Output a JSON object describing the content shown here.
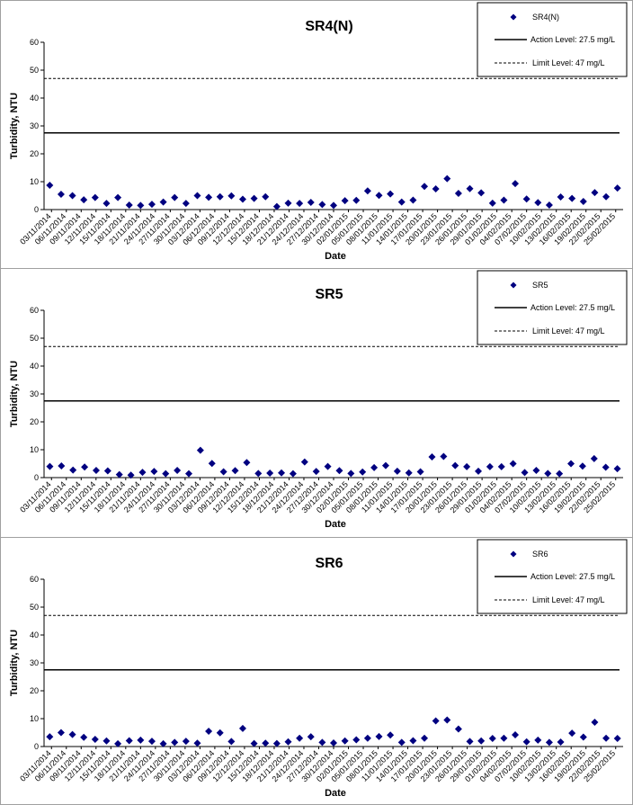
{
  "chart_data": [
    {
      "type": "scatter",
      "title": "SR4(N)",
      "xlabel": "Date",
      "ylabel": "Turbidity, NTU",
      "ylim": [
        0,
        60
      ],
      "yticks": [
        "0",
        "10",
        "20",
        "30",
        "40",
        "50",
        "60"
      ],
      "x_tick_labels": [
        "03/11/2014",
        "06/11/2014",
        "09/11/2014",
        "12/11/2014",
        "15/11/2014",
        "18/11/2014",
        "21/11/2014",
        "24/11/2014",
        "27/11/2014",
        "30/11/2014",
        "03/12/2014",
        "06/12/2014",
        "09/12/2014",
        "12/12/2014",
        "15/12/2014",
        "18/12/2014",
        "21/12/2014",
        "24/12/2014",
        "27/12/2014",
        "30/12/2014",
        "02/01/2015",
        "05/01/2015",
        "08/01/2015",
        "11/01/2015",
        "14/01/2015",
        "17/01/2015",
        "20/01/2015",
        "23/01/2015",
        "26/01/2015",
        "29/01/2015",
        "01/02/2015",
        "04/02/2015",
        "07/02/2015",
        "10/02/2015",
        "13/02/2015",
        "16/02/2015",
        "19/02/2015",
        "22/02/2015",
        "25/02/2015"
      ],
      "grid": false,
      "legend_position": "top-right",
      "series": [
        {
          "name": "SR4(N)",
          "marker": "diamond",
          "color": "#000080",
          "values": [
            8.7,
            5.5,
            5.0,
            3.5,
            4.3,
            2.2,
            4.3,
            1.6,
            1.5,
            1.9,
            2.7,
            4.3,
            2.2,
            5.0,
            4.4,
            4.6,
            4.9,
            3.7,
            4.0,
            4.6,
            1.1,
            2.3,
            2.2,
            2.6,
            1.8,
            1.5,
            3.2,
            3.3,
            6.7,
            5.1,
            5.6,
            2.7,
            3.4,
            8.3,
            7.4,
            11.1,
            5.8,
            7.5,
            6.0,
            2.3,
            3.4,
            9.3,
            3.8,
            2.5,
            1.6,
            4.5,
            4.0,
            2.9,
            6.1,
            4.6,
            7.7
          ]
        }
      ],
      "reference_lines": [
        {
          "name": "Action Level: 27.5 mg/L",
          "value": 27.5,
          "style": "solid"
        },
        {
          "name": "Limit Level: 47 mg/L",
          "value": 47,
          "style": "dashed"
        }
      ]
    },
    {
      "type": "scatter",
      "title": "SR5",
      "xlabel": "Date",
      "ylabel": "Turbidity, NTU",
      "ylim": [
        0,
        60
      ],
      "yticks": [
        "0",
        "10",
        "20",
        "30",
        "40",
        "50",
        "60"
      ],
      "x_tick_labels": [
        "03/11/2014",
        "06/11/2014",
        "09/11/2014",
        "12/11/2014",
        "15/11/2014",
        "18/11/2014",
        "21/11/2014",
        "24/11/2014",
        "27/11/2014",
        "30/11/2014",
        "03/12/2014",
        "06/12/2014",
        "09/12/2014",
        "12/12/2014",
        "15/12/2014",
        "18/12/2014",
        "21/12/2014",
        "24/12/2014",
        "27/12/2014",
        "30/12/2014",
        "02/01/2015",
        "05/01/2015",
        "08/01/2015",
        "11/01/2015",
        "14/01/2015",
        "17/01/2015",
        "20/01/2015",
        "23/01/2015",
        "26/01/2015",
        "29/01/2015",
        "01/02/2015",
        "04/02/2015",
        "07/02/2015",
        "10/02/2015",
        "13/02/2015",
        "16/02/2015",
        "19/02/2015",
        "22/02/2015",
        "25/02/2015"
      ],
      "grid": false,
      "legend_position": "top-right",
      "series": [
        {
          "name": "SR5",
          "marker": "diamond",
          "color": "#000080",
          "values": [
            4.0,
            4.2,
            2.7,
            3.8,
            2.6,
            2.4,
            1.1,
            0.9,
            1.9,
            2.2,
            1.4,
            2.6,
            1.4,
            9.8,
            5.1,
            2.1,
            2.5,
            5.4,
            1.5,
            1.6,
            1.7,
            1.4,
            5.6,
            2.2,
            4.0,
            2.5,
            1.5,
            2.0,
            3.6,
            4.3,
            2.3,
            1.7,
            2.1,
            7.4,
            7.6,
            4.3,
            3.9,
            2.3,
            3.9,
            3.9,
            5.0,
            1.8,
            2.6,
            1.5,
            1.4,
            5.0,
            4.1,
            6.8,
            3.7,
            3.2
          ]
        }
      ],
      "reference_lines": [
        {
          "name": "Action Level: 27.5 mg/L",
          "value": 27.5,
          "style": "solid"
        },
        {
          "name": "Limit Level: 47 mg/L",
          "value": 47,
          "style": "dashed"
        }
      ]
    },
    {
      "type": "scatter",
      "title": "SR6",
      "xlabel": "Date",
      "ylabel": "Turbidity, NTU",
      "ylim": [
        0,
        60
      ],
      "yticks": [
        "0",
        "10",
        "20",
        "30",
        "40",
        "50",
        "60"
      ],
      "x_tick_labels": [
        "03/11/2014",
        "06/11/2014",
        "09/11/2014",
        "12/11/2014",
        "15/11/2014",
        "18/11/2014",
        "21/11/2014",
        "24/11/2014",
        "27/11/2014",
        "30/11/2014",
        "03/12/2014",
        "06/12/2014",
        "09/12/2014",
        "12/12/2014",
        "15/12/2014",
        "18/12/2014",
        "21/12/2014",
        "24/12/2014",
        "27/12/2014",
        "30/12/2014",
        "02/01/2015",
        "05/01/2015",
        "08/01/2015",
        "11/01/2015",
        "14/01/2015",
        "17/01/2015",
        "20/01/2015",
        "23/01/2015",
        "26/01/2015",
        "29/01/2015",
        "01/02/2015",
        "04/02/2015",
        "07/02/2015",
        "10/02/2015",
        "13/02/2015",
        "16/02/2015",
        "19/02/2015",
        "22/02/2015",
        "25/02/2015"
      ],
      "grid": false,
      "legend_position": "top-right",
      "series": [
        {
          "name": "SR6",
          "marker": "diamond",
          "color": "#000080",
          "values": [
            3.5,
            5.0,
            4.3,
            3.3,
            2.6,
            2.0,
            1.0,
            2.1,
            2.3,
            1.9,
            1.0,
            1.5,
            1.9,
            1.2,
            5.5,
            4.9,
            1.8,
            6.5,
            1.1,
            1.2,
            1.1,
            1.7,
            3.0,
            3.5,
            1.5,
            1.3,
            2.0,
            2.4,
            3.0,
            3.6,
            4.1,
            1.5,
            2.1,
            3.0,
            9.2,
            9.5,
            6.3,
            1.8,
            2.0,
            2.9,
            3.0,
            4.2,
            1.7,
            2.3,
            1.5,
            1.6,
            4.8,
            3.4,
            8.7,
            3.0,
            2.9
          ]
        }
      ],
      "reference_lines": [
        {
          "name": "Action Level: 27.5 mg/L",
          "value": 27.5,
          "style": "solid"
        },
        {
          "name": "Limit Level: 47 mg/L",
          "value": 47,
          "style": "dashed"
        }
      ]
    }
  ]
}
